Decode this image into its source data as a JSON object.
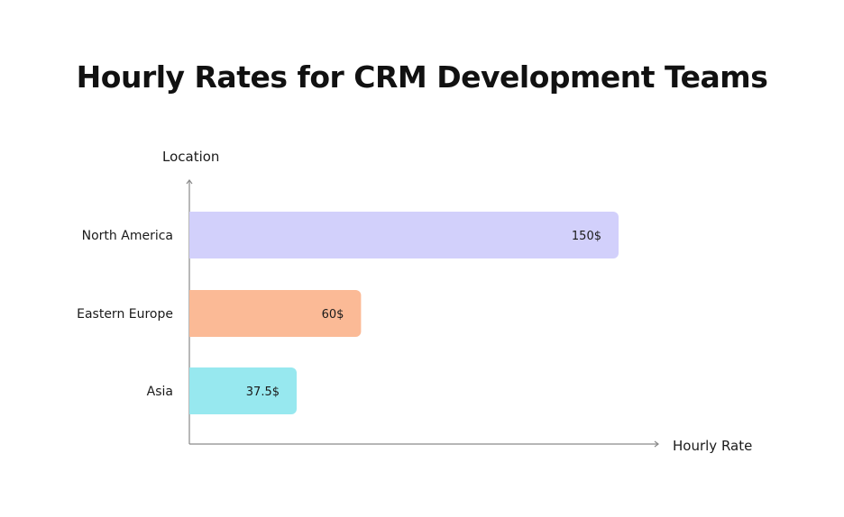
{
  "chart_data": {
    "type": "bar",
    "orientation": "horizontal",
    "title": "Hourly Rates for CRM Development Teams",
    "xlabel": "Hourly Rate",
    "ylabel": "Location",
    "categories": [
      "North America",
      "Eastern Europe",
      "Asia"
    ],
    "values": [
      150,
      60,
      37.5
    ],
    "value_labels": [
      "150$",
      "60$",
      "37.5$"
    ],
    "colors": [
      "#d2d0fb",
      "#fbba96",
      "#97e8ef"
    ],
    "xlim": [
      0,
      165
    ],
    "grid": false,
    "legend": "none"
  },
  "axis_color": "#8a8a8a"
}
